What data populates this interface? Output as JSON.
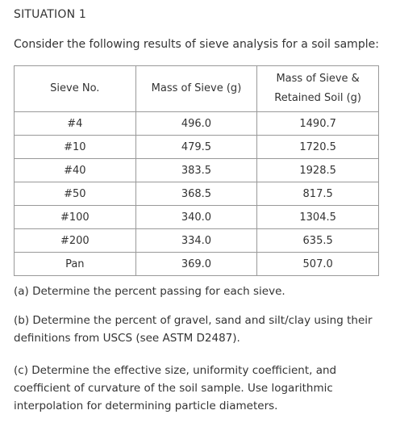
{
  "heading": "SITUATION 1",
  "intro": "Consider the following results of sieve analysis for a soil sample:",
  "table": {
    "headers": {
      "sieve_no": "Sieve No.",
      "mass_sieve": "Mass of Sieve (g)",
      "mass_retained_line1": "Mass of Sieve &",
      "mass_retained_line2": "Retained Soil (g)"
    },
    "rows": [
      {
        "sieve": "#4",
        "mass_sieve": "496.0",
        "mass_retained": "1490.7"
      },
      {
        "sieve": "#10",
        "mass_sieve": "479.5",
        "mass_retained": "1720.5"
      },
      {
        "sieve": "#40",
        "mass_sieve": "383.5",
        "mass_retained": "1928.5"
      },
      {
        "sieve": "#50",
        "mass_sieve": "368.5",
        "mass_retained": "817.5"
      },
      {
        "sieve": "#100",
        "mass_sieve": "340.0",
        "mass_retained": "1304.5"
      },
      {
        "sieve": "#200",
        "mass_sieve": "334.0",
        "mass_retained": "635.5"
      },
      {
        "sieve": "Pan",
        "mass_sieve": "369.0",
        "mass_retained": "507.0"
      }
    ]
  },
  "questions": {
    "a": "(a) Determine the percent passing for each sieve.",
    "b": "(b) Determine the percent of gravel, sand and silt/clay using their definitions from USCS (see ASTM D2487).",
    "c": "(c) Determine the effective size, uniformity coefficient, and coefficient of curvature of the soil sample. Use logarithmic interpolation for determining particle diameters."
  }
}
